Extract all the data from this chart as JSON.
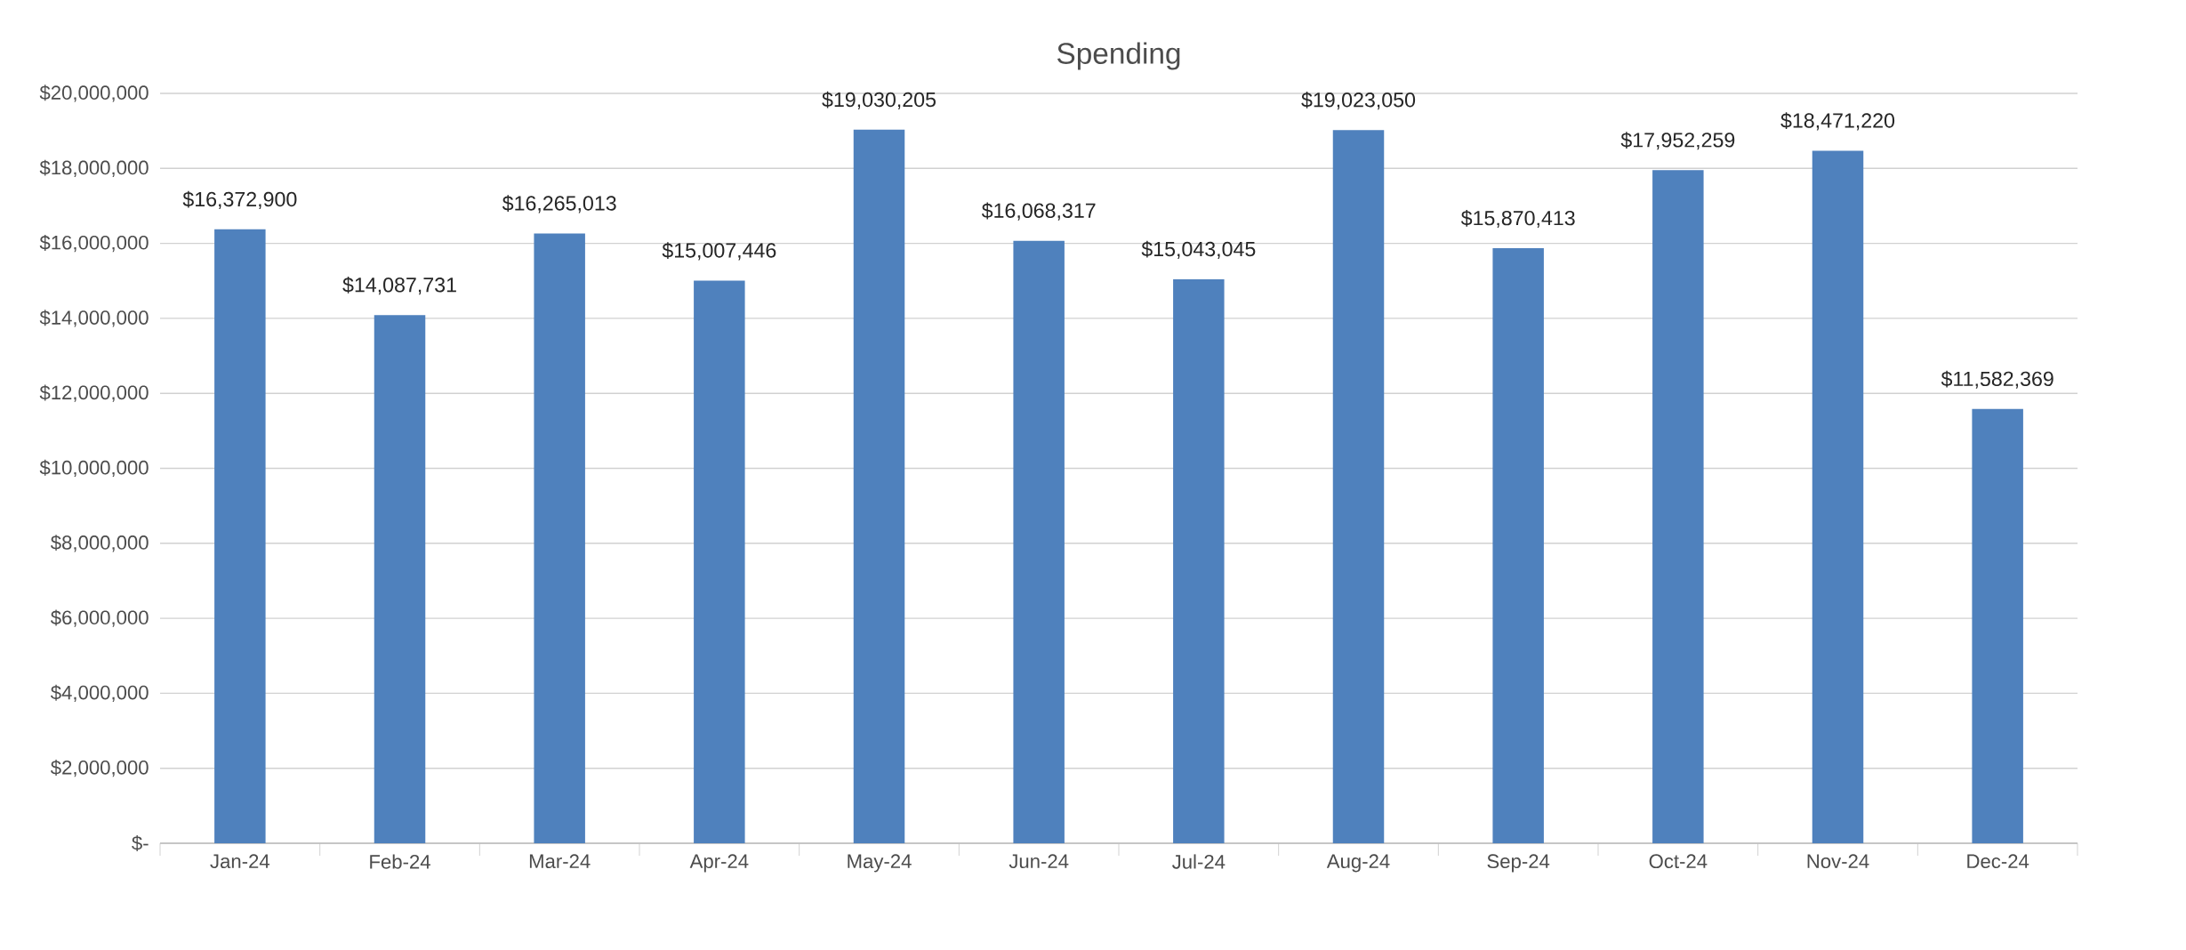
{
  "chart_data": {
    "type": "bar",
    "title": "Spending",
    "categories": [
      "Jan-24",
      "Feb-24",
      "Mar-24",
      "Apr-24",
      "May-24",
      "Jun-24",
      "Jul-24",
      "Aug-24",
      "Sep-24",
      "Oct-24",
      "Nov-24",
      "Dec-24"
    ],
    "values": [
      16372900,
      14087731,
      16265013,
      15007446,
      19030205,
      16068317,
      15043045,
      19023050,
      15870413,
      17952259,
      18471220,
      11582369
    ],
    "value_labels": [
      "$16,372,900",
      "$14,087,731",
      "$16,265,013",
      "$15,007,446",
      "$19,030,205",
      "$16,068,317",
      "$15,043,045",
      "$19,023,050",
      "$15,870,413",
      "$17,952,259",
      "$18,471,220",
      "$11,582,369"
    ],
    "color": "#4f81bd",
    "ylim": [
      0,
      20000000
    ],
    "yticks": [
      {
        "value": 0,
        "label": "$-"
      },
      {
        "value": 2000000,
        "label": "$2,000,000"
      },
      {
        "value": 4000000,
        "label": "$4,000,000"
      },
      {
        "value": 6000000,
        "label": "$6,000,000"
      },
      {
        "value": 8000000,
        "label": "$8,000,000"
      },
      {
        "value": 10000000,
        "label": "$10,000,000"
      },
      {
        "value": 12000000,
        "label": "$12,000,000"
      },
      {
        "value": 14000000,
        "label": "$14,000,000"
      },
      {
        "value": 16000000,
        "label": "$16,000,000"
      },
      {
        "value": 18000000,
        "label": "$18,000,000"
      },
      {
        "value": 20000000,
        "label": "$20,000,000"
      }
    ],
    "grid": "y"
  }
}
